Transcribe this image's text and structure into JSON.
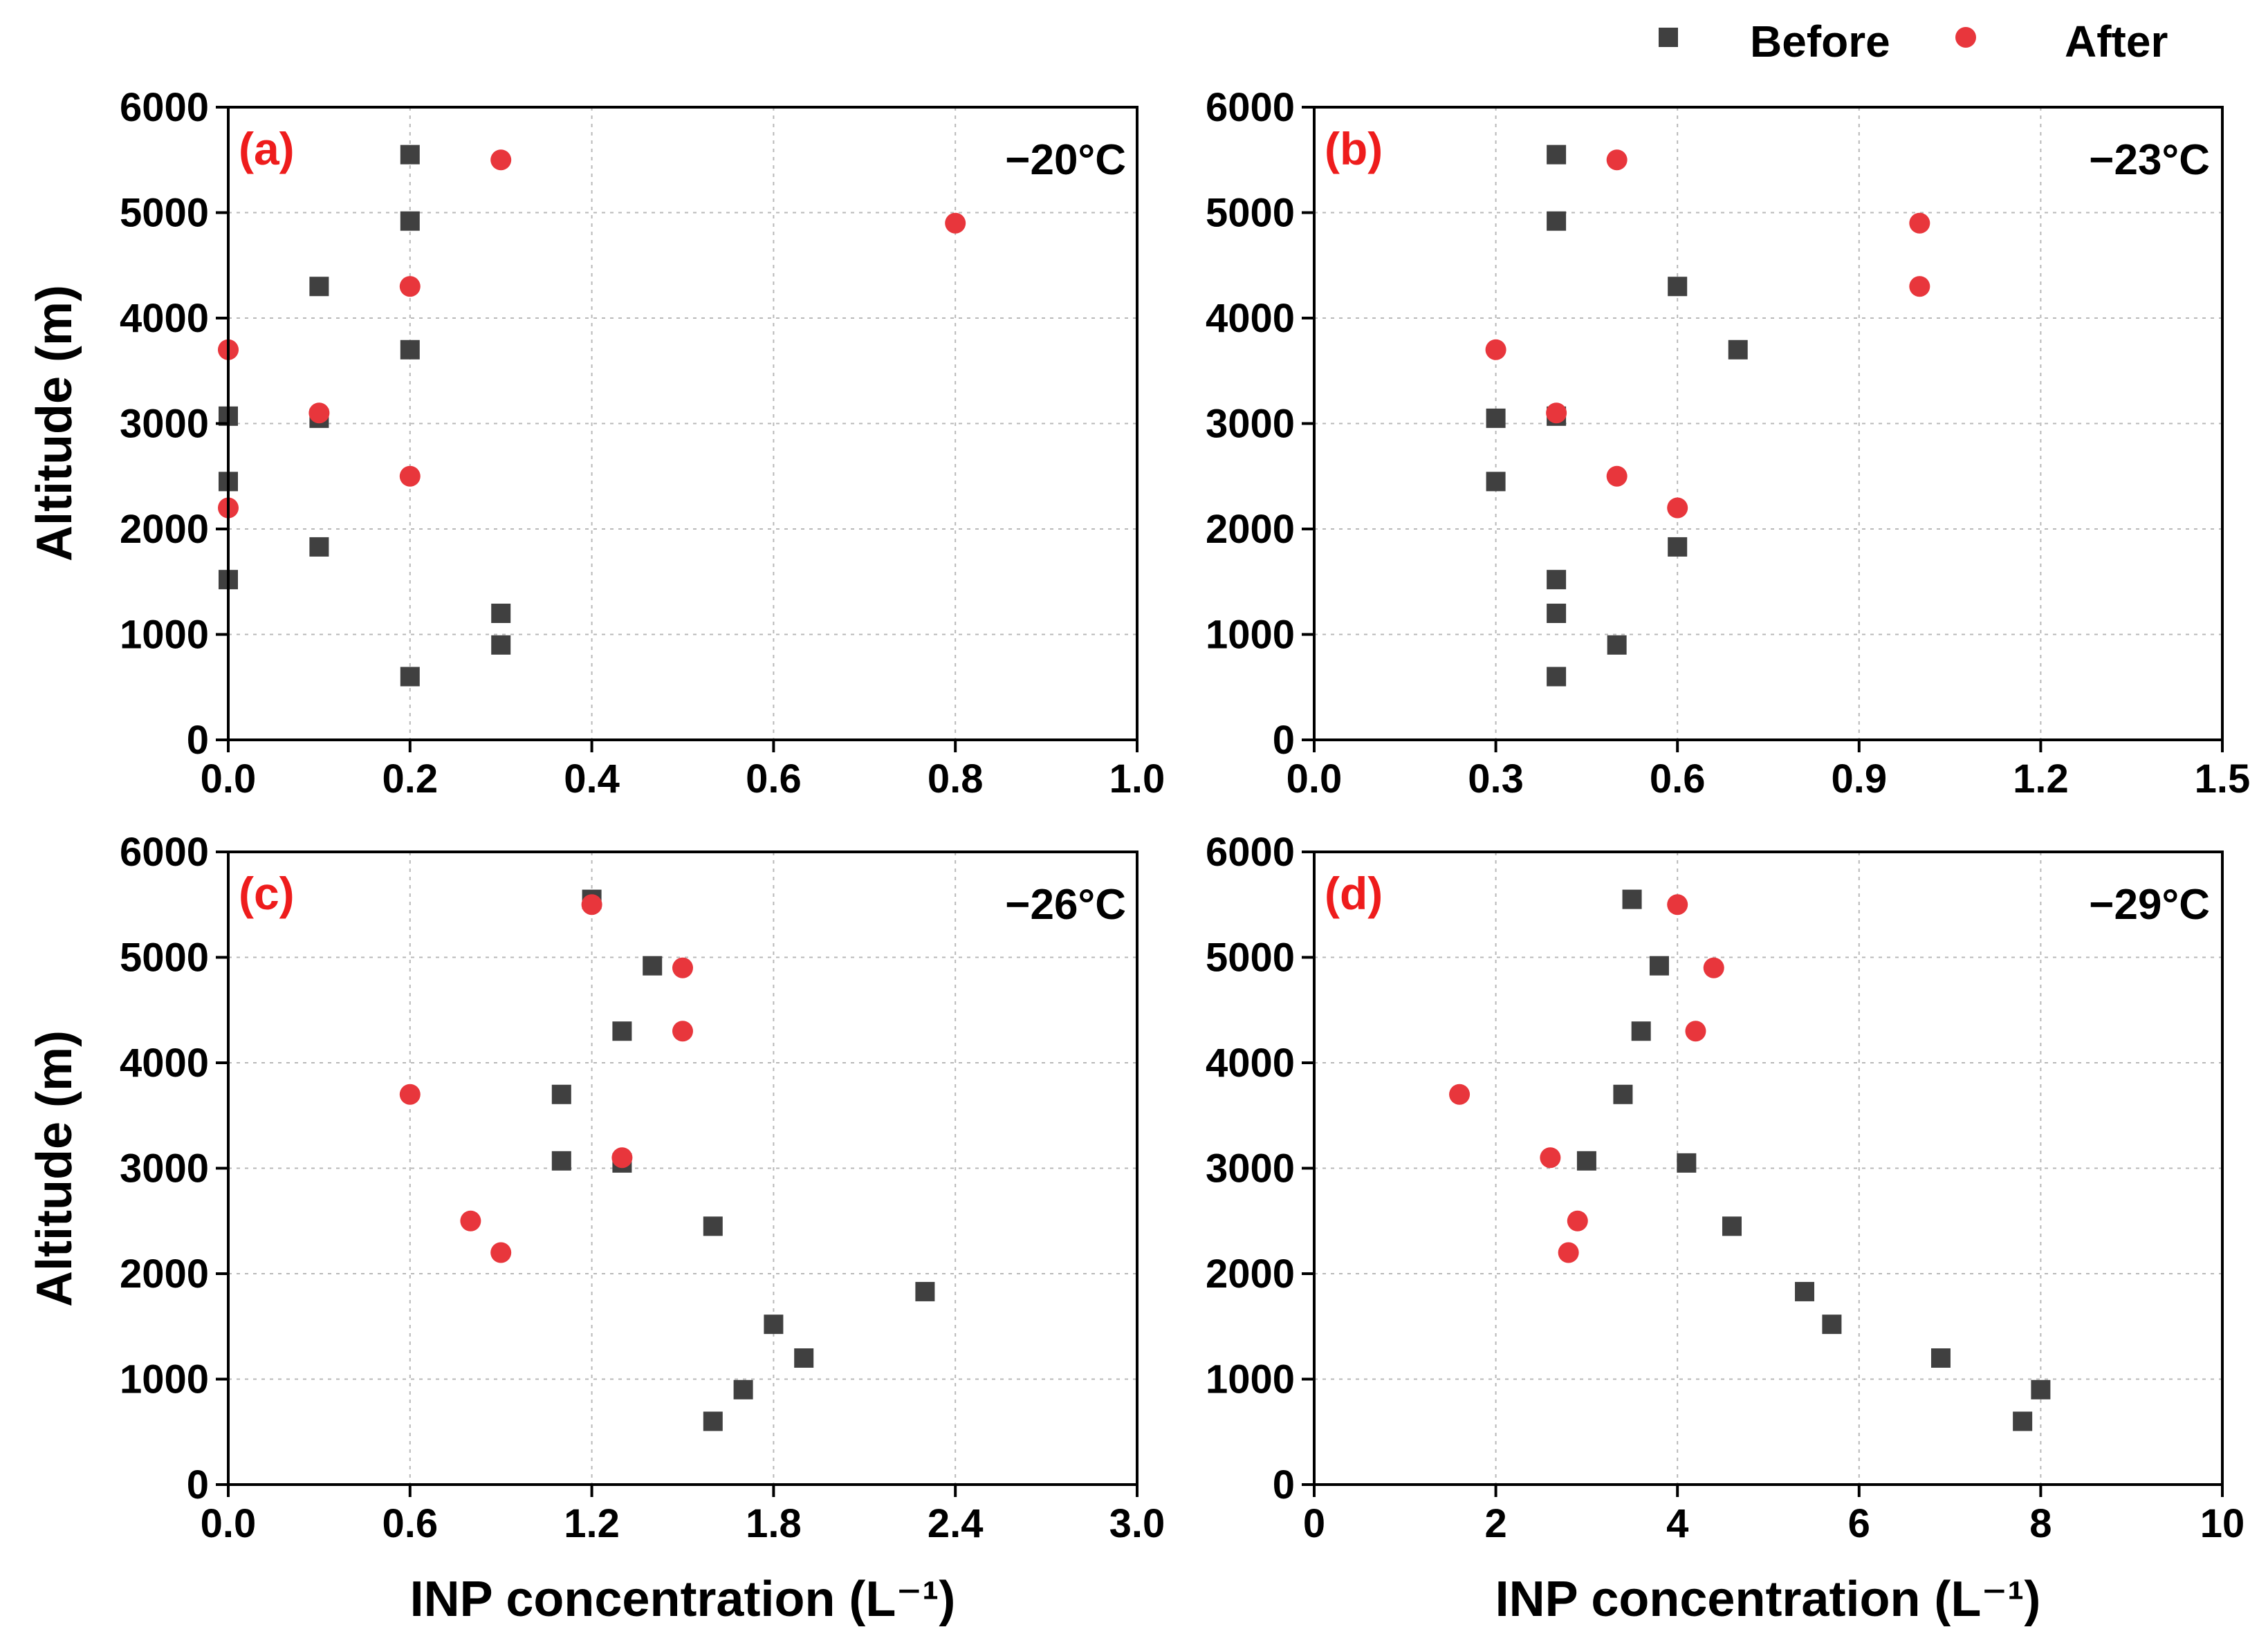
{
  "legend": {
    "before_label": "Before",
    "after_label": "After"
  },
  "colors": {
    "before": "#404040",
    "after": "#e8363c",
    "panel_label": "#ee1c1c"
  },
  "chart_data": [
    {
      "type": "scatter",
      "panel_label": "(a)",
      "temperature_label": "−20°C",
      "xlabel": "",
      "ylabel": "Altitude (m)",
      "xlim": [
        0,
        1.0
      ],
      "ylim": [
        0,
        6000
      ],
      "x_ticks": [
        "0.0",
        "0.2",
        "0.4",
        "0.6",
        "0.8",
        "1.0"
      ],
      "x_tick_values": [
        0,
        0.2,
        0.4,
        0.6,
        0.8,
        1.0
      ],
      "y_ticks": [
        "0",
        "1000",
        "2000",
        "3000",
        "4000",
        "5000",
        "6000"
      ],
      "y_tick_values": [
        0,
        1000,
        2000,
        3000,
        4000,
        5000,
        6000
      ],
      "grid": true,
      "series": [
        {
          "name": "Before",
          "marker": "square",
          "x": [
            0.2,
            0.2,
            0.1,
            0.2,
            0.0,
            0.1,
            0.0,
            0.1,
            0.0,
            0.3,
            0.3,
            0.2
          ],
          "y": [
            5550,
            4920,
            4300,
            3700,
            3070,
            3050,
            2450,
            1830,
            1520,
            1200,
            900,
            600
          ]
        },
        {
          "name": "After",
          "marker": "circle",
          "x": [
            0.3,
            0.8,
            0.2,
            0.0,
            0.1,
            0.2,
            0.0
          ],
          "y": [
            5500,
            4900,
            4300,
            3700,
            3100,
            2500,
            2200
          ]
        }
      ]
    },
    {
      "type": "scatter",
      "panel_label": "(b)",
      "temperature_label": "−23°C",
      "xlabel": "",
      "ylabel": "",
      "xlim": [
        0,
        1.5
      ],
      "ylim": [
        0,
        6000
      ],
      "x_ticks": [
        "0.0",
        "0.3",
        "0.6",
        "0.9",
        "1.2",
        "1.5"
      ],
      "x_tick_values": [
        0,
        0.3,
        0.6,
        0.9,
        1.2,
        1.5
      ],
      "y_ticks": [
        "0",
        "1000",
        "2000",
        "3000",
        "4000",
        "5000",
        "6000"
      ],
      "y_tick_values": [
        0,
        1000,
        2000,
        3000,
        4000,
        5000,
        6000
      ],
      "grid": true,
      "series": [
        {
          "name": "Before",
          "marker": "square",
          "x": [
            0.4,
            0.4,
            0.6,
            0.7,
            0.4,
            0.3,
            0.3,
            0.6,
            0.4,
            0.4,
            0.5,
            0.4
          ],
          "y": [
            5550,
            4920,
            4300,
            3700,
            3070,
            3050,
            2450,
            1830,
            1520,
            1200,
            900,
            600
          ]
        },
        {
          "name": "After",
          "marker": "circle",
          "x": [
            0.5,
            1.0,
            1.0,
            0.3,
            0.4,
            0.5,
            0.6
          ],
          "y": [
            5500,
            4900,
            4300,
            3700,
            3100,
            2500,
            2200
          ]
        }
      ]
    },
    {
      "type": "scatter",
      "panel_label": "(c)",
      "temperature_label": "−26°C",
      "xlabel": "INP concentration (L⁻¹)",
      "ylabel": "Altitude (m)",
      "xlim": [
        0,
        3.0
      ],
      "ylim": [
        0,
        6000
      ],
      "x_ticks": [
        "0.0",
        "0.6",
        "1.2",
        "1.8",
        "2.4",
        "3.0"
      ],
      "x_tick_values": [
        0,
        0.6,
        1.2,
        1.8,
        2.4,
        3.0
      ],
      "y_ticks": [
        "0",
        "1000",
        "2000",
        "3000",
        "4000",
        "5000",
        "6000"
      ],
      "y_tick_values": [
        0,
        1000,
        2000,
        3000,
        4000,
        5000,
        6000
      ],
      "grid": true,
      "series": [
        {
          "name": "Before",
          "marker": "square",
          "x": [
            1.2,
            1.4,
            1.3,
            1.1,
            1.1,
            1.3,
            1.6,
            2.3,
            1.8,
            1.9,
            1.7,
            1.6
          ],
          "y": [
            5550,
            4920,
            4300,
            3700,
            3070,
            3050,
            2450,
            1830,
            1520,
            1200,
            900,
            600
          ]
        },
        {
          "name": "After",
          "marker": "circle",
          "x": [
            1.2,
            1.5,
            1.5,
            0.6,
            1.3,
            0.8,
            0.9
          ],
          "y": [
            5500,
            4900,
            4300,
            3700,
            3100,
            2500,
            2200
          ]
        }
      ]
    },
    {
      "type": "scatter",
      "panel_label": "(d)",
      "temperature_label": "−29°C",
      "xlabel": "INP concentration (L⁻¹)",
      "ylabel": "",
      "xlim": [
        0,
        10
      ],
      "ylim": [
        0,
        6000
      ],
      "x_ticks": [
        "0",
        "2",
        "4",
        "6",
        "8",
        "10"
      ],
      "x_tick_values": [
        0,
        2,
        4,
        6,
        8,
        10
      ],
      "y_ticks": [
        "0",
        "1000",
        "2000",
        "3000",
        "4000",
        "5000",
        "6000"
      ],
      "y_tick_values": [
        0,
        1000,
        2000,
        3000,
        4000,
        5000,
        6000
      ],
      "grid": true,
      "series": [
        {
          "name": "Before",
          "marker": "square",
          "x": [
            3.5,
            3.8,
            3.6,
            3.4,
            3.0,
            4.1,
            4.6,
            5.4,
            5.7,
            6.9,
            8.0,
            7.8
          ],
          "y": [
            5550,
            4920,
            4300,
            3700,
            3070,
            3050,
            2450,
            1830,
            1520,
            1200,
            900,
            600
          ]
        },
        {
          "name": "After",
          "marker": "circle",
          "x": [
            4.0,
            4.4,
            4.2,
            1.6,
            2.6,
            2.9,
            2.8
          ],
          "y": [
            5500,
            4900,
            4300,
            3700,
            3100,
            2500,
            2200
          ]
        }
      ]
    }
  ]
}
